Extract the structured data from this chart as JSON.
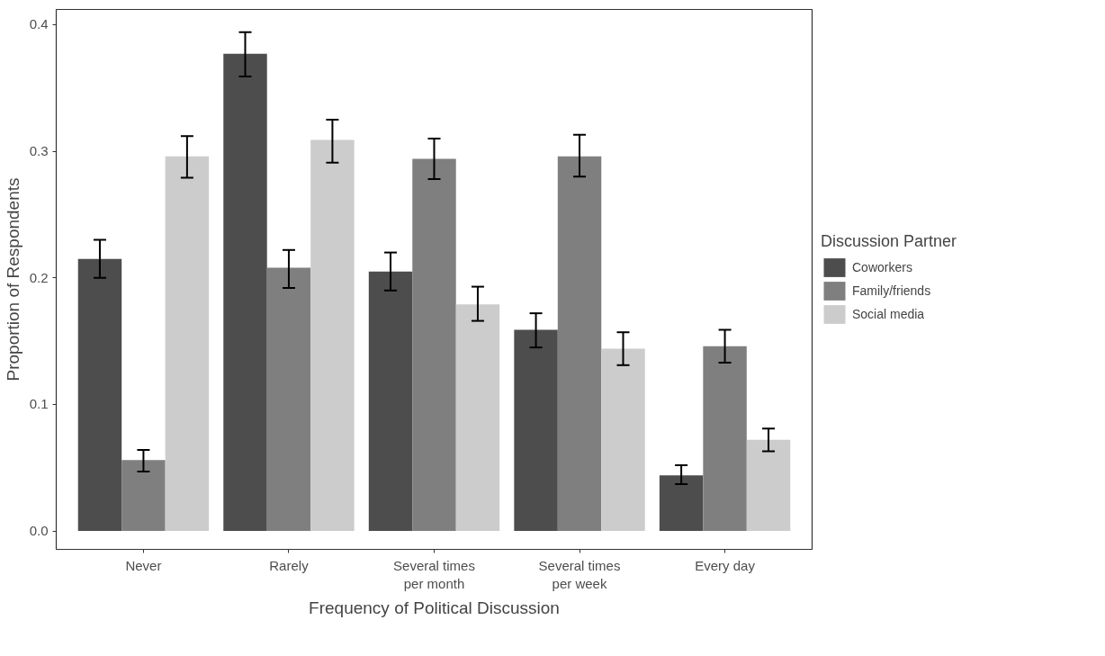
{
  "chart_data": {
    "type": "bar",
    "xlabel": "Frequency of Political Discussion",
    "ylabel": "Proportion of Respondents",
    "legend_title": "Discussion Partner",
    "categories": [
      "Never",
      "Rarely",
      "Several times\nper month",
      "Several times\nper week",
      "Every day"
    ],
    "series": [
      {
        "name": "Coworkers",
        "color": "#4d4d4d",
        "values": [
          0.215,
          0.377,
          0.205,
          0.159,
          0.044
        ],
        "errors": [
          [
            0.2,
            0.23
          ],
          [
            0.359,
            0.394
          ],
          [
            0.19,
            0.22
          ],
          [
            0.145,
            0.172
          ],
          [
            0.037,
            0.052
          ]
        ]
      },
      {
        "name": "Family/friends",
        "color": "#7f7f7f",
        "values": [
          0.056,
          0.208,
          0.294,
          0.296,
          0.146
        ],
        "errors": [
          [
            0.047,
            0.064
          ],
          [
            0.192,
            0.222
          ],
          [
            0.278,
            0.31
          ],
          [
            0.28,
            0.313
          ],
          [
            0.133,
            0.159
          ]
        ]
      },
      {
        "name": "Social media",
        "color": "#cccccc",
        "values": [
          0.296,
          0.309,
          0.179,
          0.144,
          0.072
        ],
        "errors": [
          [
            0.279,
            0.312
          ],
          [
            0.291,
            0.325
          ],
          [
            0.166,
            0.193
          ],
          [
            0.131,
            0.157
          ],
          [
            0.063,
            0.081
          ]
        ]
      }
    ],
    "ylim": [
      -0.0145,
      0.412
    ],
    "yticks": [
      {
        "value": 0,
        "label": "0.0"
      },
      {
        "value": 0.1,
        "label": "0.1"
      },
      {
        "value": 0.2,
        "label": "0.2"
      },
      {
        "value": 0.3,
        "label": "0.3"
      },
      {
        "value": 0.4,
        "label": "0.4"
      }
    ],
    "grid": false,
    "legend": "right"
  }
}
